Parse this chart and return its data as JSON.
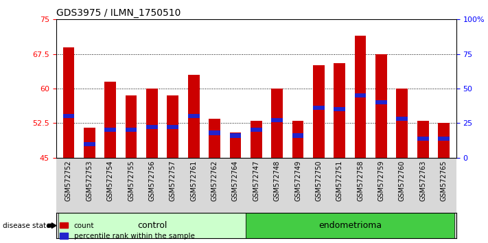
{
  "title": "GDS3975 / ILMN_1750510",
  "samples": [
    "GSM572752",
    "GSM572753",
    "GSM572754",
    "GSM572755",
    "GSM572756",
    "GSM572757",
    "GSM572761",
    "GSM572762",
    "GSM572764",
    "GSM572747",
    "GSM572748",
    "GSM572749",
    "GSM572750",
    "GSM572751",
    "GSM572758",
    "GSM572759",
    "GSM572760",
    "GSM572763",
    "GSM572765"
  ],
  "counts": [
    69.0,
    51.5,
    61.5,
    58.5,
    60.0,
    58.5,
    63.0,
    53.5,
    50.5,
    53.0,
    60.0,
    53.0,
    65.0,
    65.5,
    71.5,
    67.5,
    60.0,
    53.0,
    52.5
  ],
  "percentile_ranks": [
    30,
    10,
    20,
    20,
    22,
    22,
    30,
    18,
    16,
    20,
    27,
    16,
    36,
    35,
    45,
    40,
    28,
    14,
    14
  ],
  "bar_bottom": 45,
  "ylim_left": [
    45,
    75
  ],
  "ylim_right": [
    0,
    100
  ],
  "yticks_left": [
    45,
    52.5,
    60,
    67.5,
    75
  ],
  "yticks_right": [
    0,
    25,
    50,
    75,
    100
  ],
  "ytick_labels_left": [
    "45",
    "52.5",
    "60",
    "67.5",
    "75"
  ],
  "ytick_labels_right": [
    "0",
    "25",
    "50",
    "75",
    "100%"
  ],
  "bar_color": "#cc0000",
  "blue_color": "#2222cc",
  "control_color": "#ccffcc",
  "endo_color": "#44cc44",
  "control_label": "control",
  "endo_label": "endometrioma",
  "n_control": 9,
  "disease_state_label": "disease state",
  "legend_count": "count",
  "legend_percentile": "percentile rank within the sample",
  "xticklabel_bg": "#d8d8d8",
  "plot_bg": "#ffffff"
}
